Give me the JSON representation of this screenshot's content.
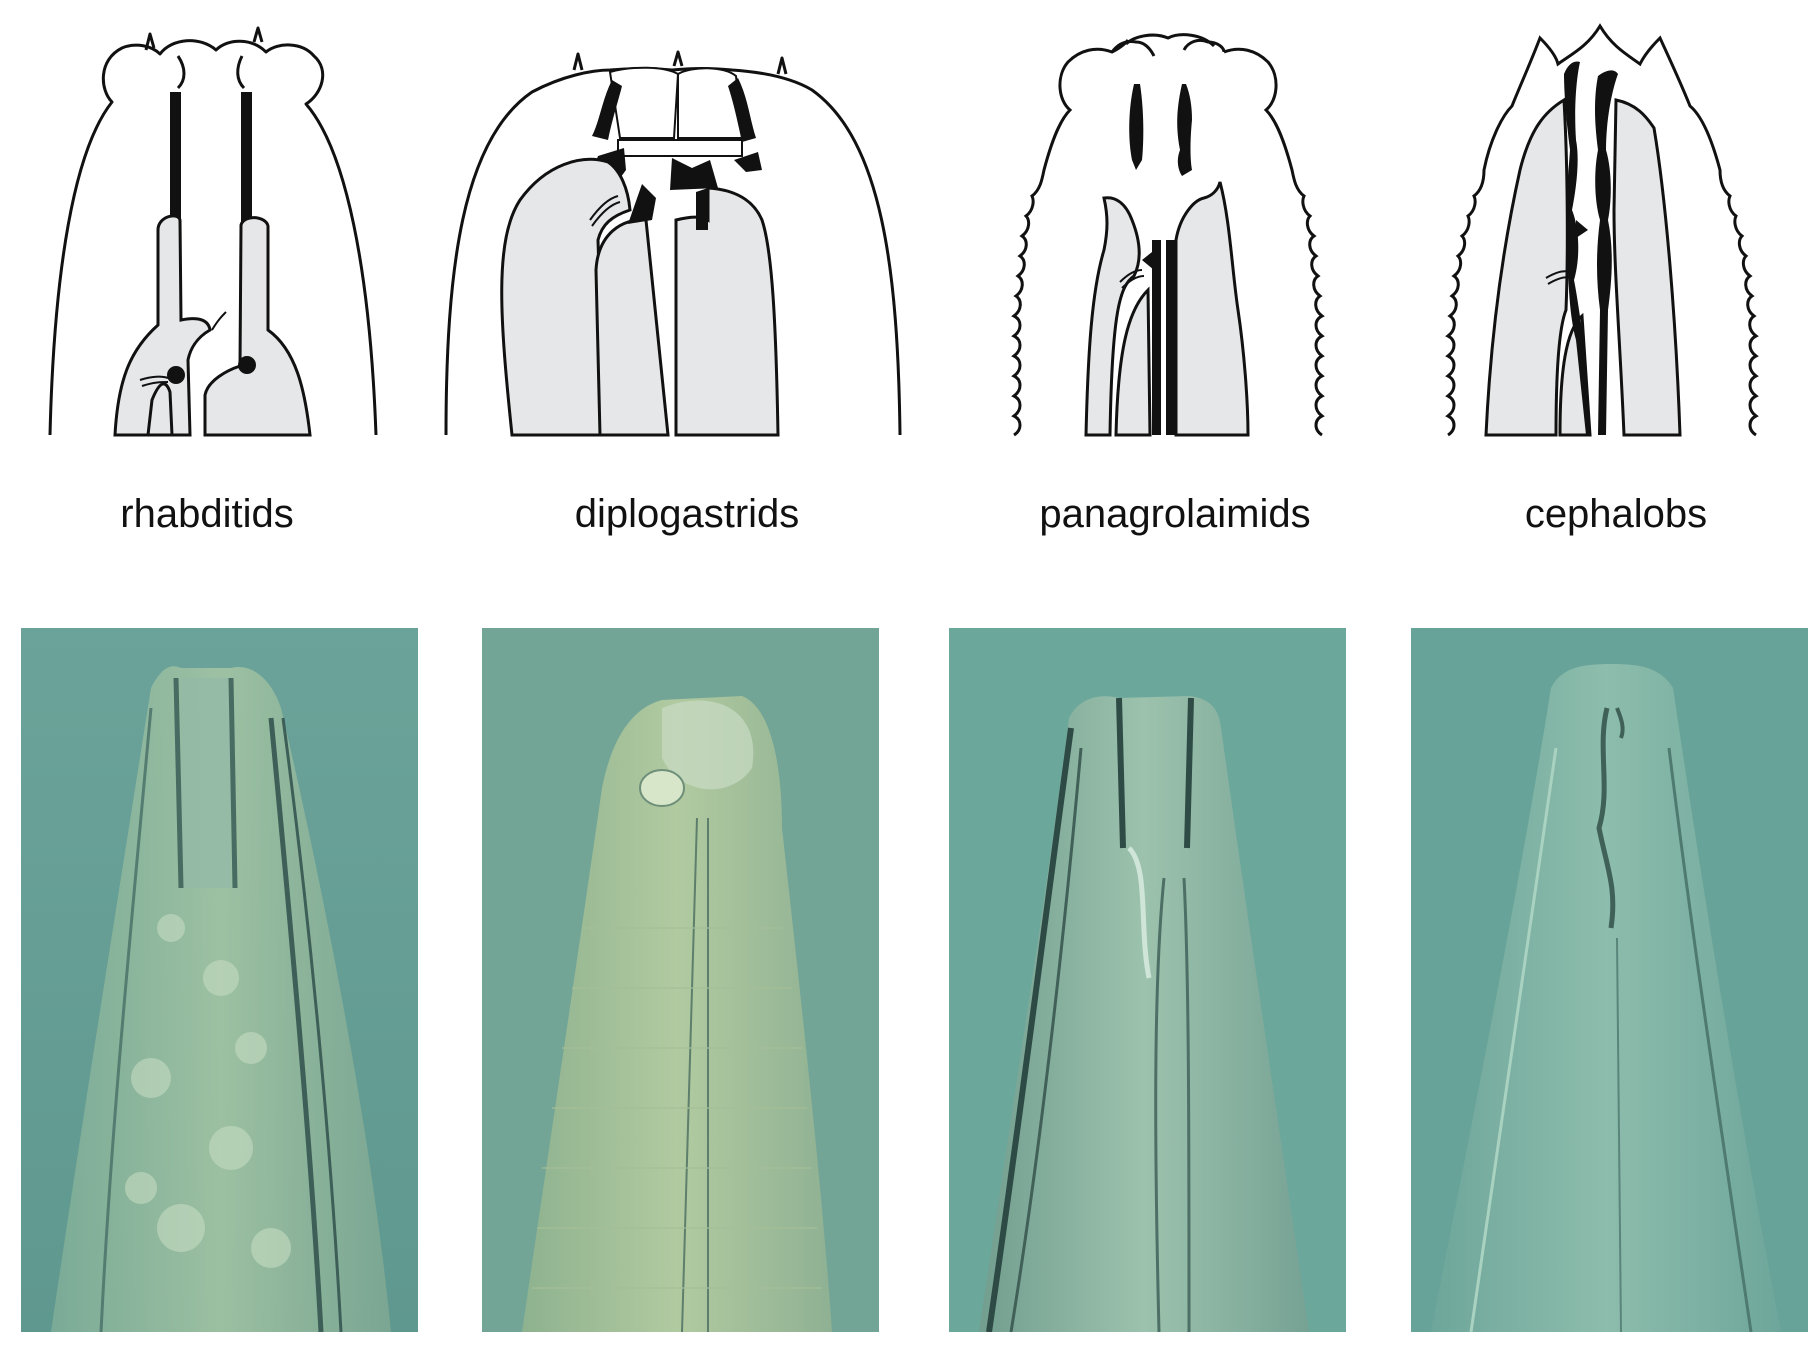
{
  "panels": [
    {
      "label": "rhabditids"
    },
    {
      "label": "diplogastrids"
    },
    {
      "label": "panagrolaimids"
    },
    {
      "label": "cephalobs"
    }
  ],
  "colors": {
    "outline": "#111111",
    "tissue": "#e6e7e8",
    "photo_background": "#6aa199"
  }
}
